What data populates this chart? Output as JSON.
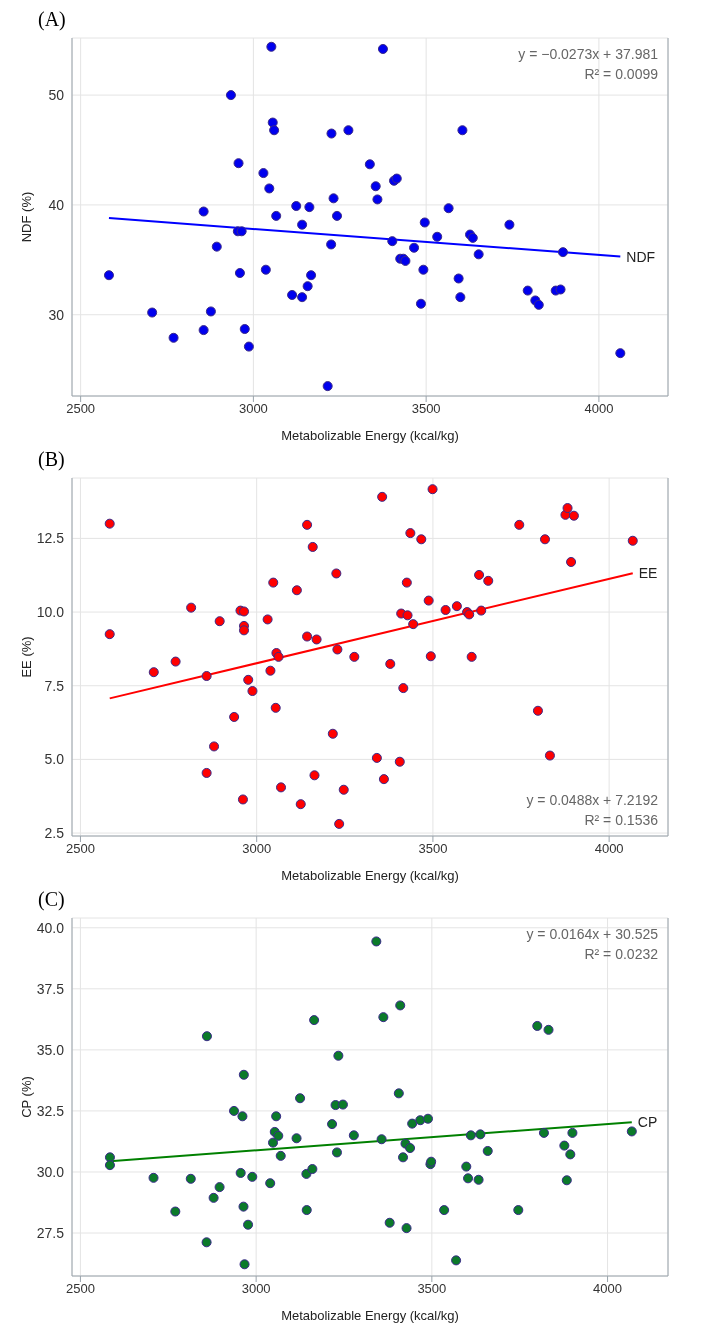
{
  "chart_data": [
    {
      "type": "scatter",
      "title": "(A)",
      "xlabel": "Metabolizable Energy (kcal/kg)",
      "ylabel": "NDF (%)",
      "xlim": [
        2475,
        4200
      ],
      "xticks": [
        2500,
        3000,
        3500,
        4000
      ],
      "ylim": [
        22.6,
        55.2
      ],
      "yticks": [
        30,
        40,
        50
      ],
      "grid": true,
      "annotations": [
        "y = −0.0273x + 37.981",
        "R² = 0.0099"
      ],
      "series": [
        {
          "color": "#0000ee",
          "marker": "circle",
          "x": [
            2582,
            2707,
            2769,
            2856,
            2856,
            2877,
            2894,
            2935,
            2957,
            2955,
            2966,
            2961,
            2975,
            2987,
            3029,
            3036,
            3046,
            3052,
            3056,
            3060,
            3066,
            3112,
            3124,
            3141,
            3141,
            3157,
            3162,
            3167,
            3215,
            3225,
            3226,
            3232,
            3242,
            3275,
            3337,
            3354,
            3359,
            3375,
            3402,
            3407,
            3415,
            3425,
            3434,
            3440,
            3465,
            3485,
            3492,
            3496,
            3532,
            3565,
            3594,
            3599,
            3605,
            3627,
            3635,
            3652,
            3741,
            3794,
            3816,
            3826,
            3875,
            3889,
            3896,
            4062
          ],
          "values": [
            33.6,
            30.2,
            27.9,
            39.4,
            28.6,
            30.3,
            36.2,
            50.0,
            43.8,
            37.6,
            37.6,
            33.8,
            28.7,
            27.1,
            42.9,
            34.1,
            41.5,
            54.4,
            47.5,
            46.8,
            39.0,
            31.8,
            39.9,
            31.6,
            38.2,
            32.6,
            39.8,
            33.6,
            23.5,
            36.4,
            46.5,
            40.6,
            39.0,
            46.8,
            43.7,
            41.7,
            40.5,
            54.2,
            36.7,
            42.2,
            42.4,
            35.1,
            35.1,
            34.9,
            36.1,
            31.0,
            34.1,
            38.4,
            37.1,
            39.7,
            33.3,
            31.6,
            46.8,
            37.3,
            37.0,
            35.5,
            38.2,
            32.2,
            31.3,
            30.9,
            32.2,
            32.3,
            35.7,
            26.5
          ]
        },
        {
          "type": "line",
          "name": "NDF",
          "color": "#0000ff",
          "marker": "none",
          "x": [
            2582,
            4062
          ],
          "values": [
            38.8,
            35.3
          ]
        }
      ]
    },
    {
      "type": "scatter",
      "title": "(B)",
      "xlabel": "Metabolizable Energy (kcal/kg)",
      "ylabel": "EE (%)",
      "xlim": [
        2476,
        4167
      ],
      "xticks": [
        2500,
        3000,
        3500,
        4000
      ],
      "ylim": [
        2.4,
        14.55
      ],
      "yticks": [
        2.5,
        {
          "value": 5,
          "label": "5.0"
        },
        7.5,
        {
          "value": 10,
          "label": "10.0"
        },
        12.5
      ],
      "grid": true,
      "annotations": [
        "y = 0.0488x + 7.2192",
        "R² = 0.1536"
      ],
      "series": [
        {
          "color": "#ff0000",
          "marker": "circle",
          "x": [
            2583,
            2583,
            2708,
            2770,
            2814,
            2858,
            2858,
            2879,
            2895,
            2936,
            2954,
            2964,
            2964,
            2964,
            2961,
            2976,
            2988,
            3031,
            3039,
            3047,
            3054,
            3056,
            3062,
            3069,
            3114,
            3125,
            3143,
            3143,
            3159,
            3170,
            3164,
            3216,
            3226,
            3229,
            3234,
            3247,
            3277,
            3341,
            3356,
            3361,
            3379,
            3406,
            3410,
            3416,
            3426,
            3428,
            3436,
            3444,
            3467,
            3488,
            3494,
            3499,
            3536,
            3568,
            3597,
            3603,
            3610,
            3631,
            3637,
            3657,
            3745,
            3798,
            3818,
            3832,
            3876,
            3882,
            3892,
            3900,
            4067
          ],
          "values": [
            13.0,
            9.25,
            7.96,
            8.32,
            10.15,
            7.83,
            4.54,
            5.44,
            9.69,
            6.44,
            10.05,
            10.02,
            9.53,
            9.38,
            3.64,
            7.7,
            7.32,
            9.75,
            8.01,
            11.0,
            6.75,
            8.61,
            8.48,
            4.05,
            10.74,
            3.48,
            12.96,
            9.17,
            12.21,
            9.07,
            4.46,
            5.87,
            11.31,
            8.73,
            2.81,
            3.97,
            8.48,
            5.05,
            13.91,
            4.33,
            8.24,
            4.92,
            9.95,
            7.42,
            11.0,
            9.89,
            12.68,
            9.59,
            12.47,
            10.39,
            8.5,
            14.17,
            10.07,
            10.2,
            10.0,
            9.92,
            8.48,
            11.26,
            10.05,
            11.06,
            12.96,
            6.65,
            12.47,
            5.13,
            13.3,
            13.53,
            11.7,
            13.27,
            12.42
          ]
        },
        {
          "type": "line",
          "name": "EE",
          "color": "#ff0000",
          "marker": "none",
          "x": [
            2583,
            4067
          ],
          "values": [
            7.07,
            11.32
          ]
        }
      ]
    },
    {
      "type": "scatter",
      "title": "(C)",
      "xlabel": "Metabolizable Energy (kcal/kg)",
      "ylabel": "CP (%)",
      "xlim": [
        2476,
        4172
      ],
      "xticks": [
        2500,
        3000,
        3500,
        4000
      ],
      "ylim": [
        25.74,
        40.4
      ],
      "yticks": [
        27.5,
        {
          "value": 30,
          "label": "30.0"
        },
        32.5,
        {
          "value": 35,
          "label": "35.0"
        },
        37.5,
        {
          "value": 40,
          "label": "40.0"
        }
      ],
      "grid": true,
      "annotations": [
        "y = 0.0164x + 30.525",
        "R² = 0.0232"
      ],
      "series": [
        {
          "color": "#0b7a2a",
          "marker": "circle",
          "x": [
            2584,
            2584,
            2708,
            2770,
            2814,
            2860,
            2859,
            2879,
            2896,
            2937,
            2956,
            2961,
            2965,
            2964,
            2967,
            2977,
            2989,
            3040,
            3048,
            3053,
            3057,
            3063,
            3070,
            3115,
            3125,
            3143,
            3144,
            3160,
            3165,
            3216,
            3226,
            3230,
            3234,
            3247,
            3278,
            3342,
            3357,
            3362,
            3380,
            3406,
            3410,
            3418,
            3425,
            3428,
            3438,
            3444,
            3467,
            3489,
            3496,
            3498,
            3535,
            3569,
            3598,
            3603,
            3611,
            3633,
            3638,
            3659,
            3746,
            3800,
            3819,
            3832,
            3877,
            3884,
            3894,
            3900,
            4069
          ],
          "values": [
            30.6,
            30.28,
            29.76,
            28.38,
            29.72,
            35.56,
            27.12,
            28.94,
            29.38,
            32.5,
            29.96,
            32.28,
            33.98,
            28.58,
            26.22,
            27.84,
            29.8,
            29.54,
            31.2,
            31.64,
            32.28,
            31.48,
            30.66,
            31.38,
            33.02,
            29.92,
            28.44,
            30.12,
            36.22,
            31.96,
            32.74,
            30.8,
            34.76,
            32.76,
            31.5,
            39.44,
            31.34,
            36.34,
            27.92,
            33.22,
            36.82,
            30.6,
            31.16,
            27.7,
            30.98,
            31.98,
            32.12,
            32.18,
            30.32,
            30.42,
            28.44,
            26.38,
            30.22,
            29.74,
            31.5,
            29.68,
            31.54,
            30.86,
            28.44,
            35.98,
            31.6,
            35.82,
            31.08,
            29.66,
            30.72,
            31.6,
            31.66
          ]
        },
        {
          "type": "line",
          "name": "CP",
          "color": "#008000",
          "marker": "none",
          "x": [
            2584,
            4069
          ],
          "values": [
            30.44,
            32.04
          ]
        }
      ]
    }
  ]
}
